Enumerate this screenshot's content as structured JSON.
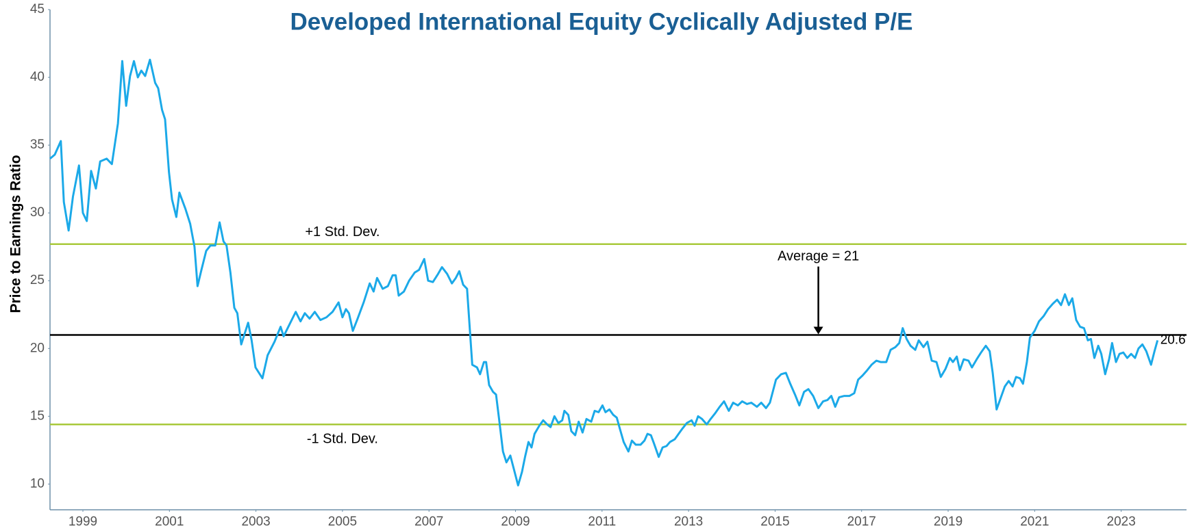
{
  "chart_data": {
    "type": "line",
    "title": "Developed International Equity Cyclically Adjusted P/E",
    "y_label": "Price to Earnings Ratio",
    "xlim": [
      1998.24,
      2024.51
    ],
    "xticks": [
      1999,
      2001,
      2003,
      2005,
      2007,
      2009,
      2011,
      2013,
      2015,
      2017,
      2019,
      2021,
      2023
    ],
    "ylim": [
      8.1,
      45
    ],
    "yticks": [
      10,
      15,
      20,
      25,
      30,
      35,
      40,
      45
    ],
    "grid": false,
    "reference_lines": [
      {
        "label": "+1 Std. Dev.",
        "value": 27.7,
        "color": "#a8c93a"
      },
      {
        "label": "-1 Std. Dev.",
        "value": 14.4,
        "color": "#a8c93a"
      },
      {
        "label": "Average =  21",
        "value": 21,
        "color": "#000000"
      }
    ],
    "series": [
      {
        "name": "Cyclically Adjusted P/E",
        "color": "#1ba9e8",
        "x": [
          1998.24,
          1998.35,
          1998.49,
          1998.56,
          1998.67,
          1998.77,
          1998.91,
          1999.0,
          1999.09,
          1999.19,
          1999.3,
          1999.4,
          1999.55,
          1999.67,
          1999.81,
          1999.91,
          2000.0,
          2000.09,
          2000.18,
          2000.27,
          2000.35,
          2000.44,
          2000.55,
          2000.67,
          2000.74,
          2000.83,
          2000.9,
          2000.99,
          2001.06,
          2001.16,
          2001.23,
          2001.37,
          2001.48,
          2001.58,
          2001.65,
          2001.74,
          2001.85,
          2001.95,
          2002.06,
          2002.16,
          2002.25,
          2002.32,
          2002.41,
          2002.5,
          2002.57,
          2002.66,
          2002.82,
          2002.9,
          2002.99,
          2003.15,
          2003.27,
          2003.43,
          2003.57,
          2003.64,
          2003.78,
          2003.92,
          2004.03,
          2004.13,
          2004.24,
          2004.36,
          2004.49,
          2004.63,
          2004.77,
          2004.91,
          2005.0,
          2005.08,
          2005.15,
          2005.24,
          2005.35,
          2005.49,
          2005.63,
          2005.72,
          2005.8,
          2005.93,
          2006.05,
          2006.16,
          2006.23,
          2006.3,
          2006.42,
          2006.54,
          2006.67,
          2006.77,
          2006.89,
          2006.98,
          2007.09,
          2007.21,
          2007.3,
          2007.42,
          2007.53,
          2007.62,
          2007.7,
          2007.79,
          2007.88,
          2008.0,
          2008.11,
          2008.18,
          2008.27,
          2008.32,
          2008.39,
          2008.48,
          2008.55,
          2008.62,
          2008.71,
          2008.79,
          2008.88,
          2008.97,
          2009.06,
          2009.15,
          2009.22,
          2009.3,
          2009.37,
          2009.44,
          2009.55,
          2009.64,
          2009.73,
          2009.81,
          2009.9,
          2009.99,
          2010.08,
          2010.13,
          2010.22,
          2010.29,
          2010.38,
          2010.46,
          2010.55,
          2010.64,
          2010.75,
          2010.83,
          2010.92,
          2011.01,
          2011.08,
          2011.17,
          2011.26,
          2011.34,
          2011.41,
          2011.5,
          2011.61,
          2011.69,
          2011.78,
          2011.89,
          2011.98,
          2012.05,
          2012.13,
          2012.2,
          2012.31,
          2012.4,
          2012.49,
          2012.57,
          2012.68,
          2012.77,
          2012.86,
          2012.96,
          2013.07,
          2013.14,
          2013.22,
          2013.31,
          2013.42,
          2013.51,
          2013.61,
          2013.72,
          2013.82,
          2013.93,
          2014.03,
          2014.14,
          2014.24,
          2014.35,
          2014.45,
          2014.58,
          2014.68,
          2014.79,
          2014.88,
          2015.02,
          2015.14,
          2015.25,
          2015.35,
          2015.46,
          2015.56,
          2015.67,
          2015.77,
          2015.88,
          2016.0,
          2016.11,
          2016.21,
          2016.3,
          2016.39,
          2016.48,
          2016.6,
          2016.72,
          2016.83,
          2016.92,
          2017.02,
          2017.13,
          2017.23,
          2017.34,
          2017.44,
          2017.57,
          2017.67,
          2017.78,
          2017.87,
          2017.95,
          2018.04,
          2018.13,
          2018.24,
          2018.32,
          2018.43,
          2018.52,
          2018.62,
          2018.73,
          2018.83,
          2018.94,
          2019.04,
          2019.11,
          2019.2,
          2019.27,
          2019.36,
          2019.47,
          2019.55,
          2019.66,
          2019.76,
          2019.87,
          2019.96,
          2020.03,
          2020.12,
          2020.22,
          2020.31,
          2020.4,
          2020.49,
          2020.57,
          2020.66,
          2020.73,
          2020.82,
          2020.89,
          2021.0,
          2021.1,
          2021.21,
          2021.31,
          2021.42,
          2021.52,
          2021.61,
          2021.7,
          2021.79,
          2021.87,
          2021.96,
          2022.05,
          2022.14,
          2022.23,
          2022.3,
          2022.38,
          2022.47,
          2022.54,
          2022.63,
          2022.72,
          2022.79,
          2022.88,
          2022.96,
          2023.05,
          2023.14,
          2023.23,
          2023.32,
          2023.4,
          2023.49,
          2023.58,
          2023.69,
          2023.77,
          2023.84
        ],
        "values": [
          34.0,
          34.3,
          35.3,
          30.8,
          28.7,
          31.2,
          33.5,
          30.0,
          29.4,
          33.1,
          31.8,
          33.8,
          34.0,
          33.6,
          36.6,
          41.2,
          37.9,
          40.1,
          41.2,
          40.0,
          40.5,
          40.1,
          41.3,
          39.6,
          39.2,
          37.6,
          36.9,
          33.0,
          31.0,
          29.7,
          31.5,
          30.3,
          29.2,
          27.5,
          24.6,
          25.8,
          27.2,
          27.6,
          27.6,
          29.3,
          27.9,
          27.6,
          25.6,
          23.0,
          22.6,
          20.3,
          21.9,
          20.6,
          18.6,
          17.8,
          19.5,
          20.5,
          21.6,
          20.9,
          21.8,
          22.7,
          22.0,
          22.6,
          22.2,
          22.7,
          22.1,
          22.3,
          22.7,
          23.4,
          22.3,
          22.9,
          22.6,
          21.3,
          22.2,
          23.4,
          24.8,
          24.2,
          25.2,
          24.4,
          24.6,
          25.4,
          25.4,
          23.9,
          24.2,
          25.0,
          25.6,
          25.8,
          26.6,
          25.0,
          24.9,
          25.5,
          26.0,
          25.5,
          24.8,
          25.2,
          25.7,
          24.7,
          24.4,
          18.8,
          18.6,
          18.1,
          19.0,
          19.0,
          17.3,
          16.8,
          16.6,
          14.8,
          12.4,
          11.6,
          12.1,
          11.0,
          9.9,
          10.9,
          12.0,
          13.1,
          12.7,
          13.7,
          14.3,
          14.7,
          14.4,
          14.2,
          15.0,
          14.5,
          14.7,
          15.4,
          15.1,
          13.9,
          13.6,
          14.6,
          13.8,
          14.8,
          14.6,
          15.4,
          15.3,
          15.8,
          15.3,
          15.5,
          15.1,
          14.9,
          14.1,
          13.1,
          12.4,
          13.2,
          12.9,
          12.9,
          13.2,
          13.7,
          13.6,
          13.0,
          12.0,
          12.7,
          12.8,
          13.1,
          13.3,
          13.7,
          14.1,
          14.5,
          14.7,
          14.3,
          15.0,
          14.8,
          14.4,
          14.8,
          15.2,
          15.7,
          16.1,
          15.4,
          16.0,
          15.8,
          16.1,
          15.9,
          16.0,
          15.7,
          16.0,
          15.6,
          16.0,
          17.7,
          18.1,
          18.2,
          17.4,
          16.6,
          15.8,
          16.8,
          17.0,
          16.5,
          15.6,
          16.1,
          16.2,
          16.5,
          15.7,
          16.4,
          16.5,
          16.5,
          16.7,
          17.7,
          18.0,
          18.4,
          18.8,
          19.1,
          19.0,
          19.0,
          19.9,
          20.1,
          20.4,
          21.5,
          20.7,
          20.2,
          19.9,
          20.6,
          20.1,
          20.5,
          19.1,
          19.0,
          17.9,
          18.5,
          19.3,
          19.0,
          19.4,
          18.4,
          19.2,
          19.1,
          18.6,
          19.2,
          19.7,
          20.2,
          19.8,
          18.2,
          15.5,
          16.4,
          17.2,
          17.6,
          17.2,
          17.9,
          17.8,
          17.4,
          19.0,
          20.8,
          21.3,
          22.0,
          22.4,
          22.9,
          23.3,
          23.6,
          23.2,
          24.0,
          23.2,
          23.7,
          22.1,
          21.6,
          21.5,
          20.6,
          20.7,
          19.3,
          20.2,
          19.6,
          18.1,
          19.2,
          20.4,
          19.0,
          19.6,
          19.7,
          19.3,
          19.6,
          19.3,
          20.0,
          20.3,
          19.8,
          18.8,
          19.8,
          20.6
        ]
      }
    ]
  }
}
